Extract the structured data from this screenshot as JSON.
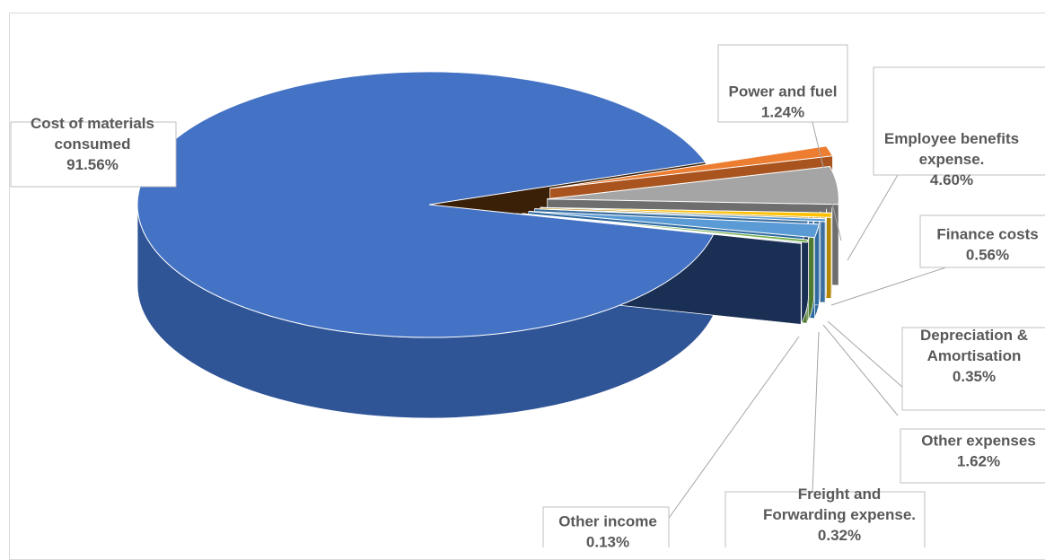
{
  "chart_data": {
    "type": "pie",
    "title": "",
    "slices": [
      {
        "name": "Cost of materials consumed",
        "value": 91.56,
        "label_lines": [
          "Cost of materials",
          "consumed",
          "91.56%"
        ],
        "color": "#4472C4",
        "side": "#2F5597"
      },
      {
        "name": "Power and fuel",
        "value": 1.24,
        "label_lines": [
          "Power and fuel",
          "1.24%"
        ],
        "color": "#ED7D31",
        "side": "#A9541F"
      },
      {
        "name": "Employee benefits expense.",
        "value": 4.6,
        "label_lines": [
          "Employee benefits",
          "expense.",
          "4.60%"
        ],
        "color": "#A5A5A5",
        "side": "#6E6E6E"
      },
      {
        "name": "Finance costs",
        "value": 0.56,
        "label_lines": [
          "Finance costs",
          "0.56%"
        ],
        "color": "#FFC000",
        "side": "#B38600"
      },
      {
        "name": "Depreciation & Amortisation",
        "value": 0.35,
        "label_lines": [
          "Depreciation &",
          "Amortisation",
          "0.35%"
        ],
        "color": "#5B9BD5",
        "side": "#3A6E9E"
      },
      {
        "name": "Other expenses",
        "value": 1.62,
        "label_lines": [
          "Other expenses",
          "1.62%"
        ],
        "color": "#5B9BD5",
        "side": "#2E6AA0"
      },
      {
        "name": "Freight and Forwarding expense.",
        "value": 0.32,
        "label_lines": [
          "Freight and",
          "Forwarding expense.",
          "0.32%"
        ],
        "color": "#70AD47",
        "side": "#4E7A31"
      },
      {
        "name": "Other income",
        "value": 0.13,
        "label_lines": [
          "Other income",
          "0.13%"
        ],
        "color": "#264478",
        "side": "#1A2F54"
      }
    ],
    "legend": "none",
    "style": "3d-exploded-pie"
  }
}
